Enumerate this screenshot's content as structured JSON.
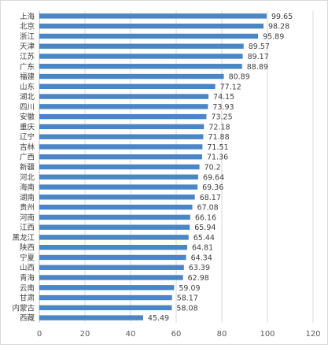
{
  "chart_data": {
    "type": "bar",
    "orientation": "horizontal",
    "categories": [
      "上海",
      "北京",
      "浙江",
      "天津",
      "江苏",
      "广东",
      "福建",
      "山东",
      "湖北",
      "四川",
      "安徽",
      "重庆",
      "辽宁",
      "吉林",
      "广西",
      "新疆",
      "河北",
      "海南",
      "湖南",
      "贵州",
      "河南",
      "江西",
      "黑龙江",
      "陕西",
      "宁夏",
      "山西",
      "青海",
      "云南",
      "甘肃",
      "内蒙古",
      "西藏"
    ],
    "values": [
      99.65,
      98.28,
      95.89,
      89.57,
      89.17,
      88.89,
      80.89,
      77.12,
      74.15,
      73.93,
      73.25,
      72.18,
      71.88,
      71.51,
      71.36,
      70.2,
      69.64,
      69.36,
      68.17,
      67.08,
      66.16,
      65.94,
      65.44,
      64.81,
      64.34,
      63.39,
      62.98,
      59.09,
      58.17,
      58.08,
      45.49
    ],
    "value_labels": [
      "99.65",
      "98.28",
      "95.89",
      "89.57",
      "89.17",
      "88.89",
      "80.89",
      "77.12",
      "74.15",
      "73.93",
      "73.25",
      "72.18",
      "71.88",
      "71.51",
      "71.36",
      "70.2",
      "69.64",
      "69.36",
      "68.17",
      "67.08",
      "66.16",
      "65.94",
      "65.44",
      "64.81",
      "64.34",
      "63.39",
      "62.98",
      "59.09",
      "58.17",
      "58.08",
      "45.49"
    ],
    "xlim": [
      0,
      120
    ],
    "x_ticks": [
      "0",
      "20",
      "40",
      "60",
      "80",
      "100",
      "120"
    ],
    "grid": "vertical",
    "title": "",
    "xlabel": "",
    "ylabel": "",
    "bar_color": "#4a86c5"
  }
}
